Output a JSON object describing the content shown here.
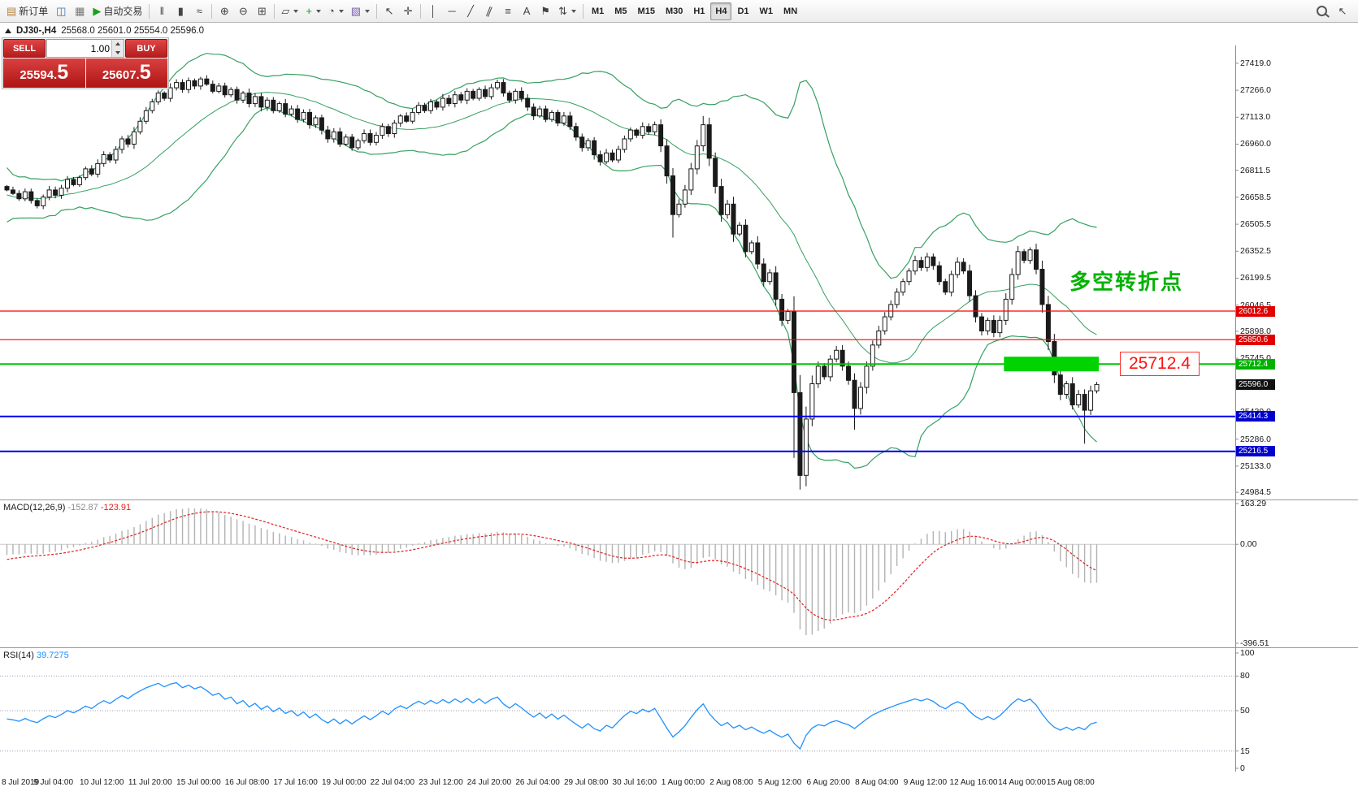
{
  "toolbar": {
    "groups": [
      {
        "items": [
          {
            "name": "new-order",
            "label": "新订单"
          },
          {
            "name": "chart-window"
          },
          {
            "name": "profiles"
          },
          {
            "name": "autotrading",
            "label": "自动交易"
          }
        ]
      },
      {
        "items": [
          {
            "name": "bar-chart"
          },
          {
            "name": "candlestick-chart"
          },
          {
            "name": "line-chart"
          }
        ]
      },
      {
        "items": [
          {
            "name": "zoom-in"
          },
          {
            "name": "zoom-out"
          },
          {
            "name": "tile-windows"
          }
        ]
      },
      {
        "items": [
          {
            "name": "new-chart",
            "caret": true
          },
          {
            "name": "indicators",
            "caret": true
          },
          {
            "name": "periods",
            "caret": true
          },
          {
            "name": "templates",
            "caret": true
          }
        ]
      },
      {
        "items": [
          {
            "name": "cursor"
          },
          {
            "name": "crosshair"
          }
        ]
      },
      {
        "items": [
          {
            "name": "vertical-line"
          },
          {
            "name": "horizontal-line"
          },
          {
            "name": "trend-line"
          },
          {
            "name": "channel"
          },
          {
            "name": "fibonacci"
          },
          {
            "name": "text"
          },
          {
            "name": "label"
          },
          {
            "name": "arrows",
            "caret": true
          }
        ]
      }
    ],
    "timeframes": [
      "M1",
      "M5",
      "M15",
      "M30",
      "H1",
      "H4",
      "D1",
      "W1",
      "MN"
    ],
    "active_timeframe": "H4",
    "right_items": [
      {
        "name": "search"
      },
      {
        "name": "pointer"
      }
    ]
  },
  "chart": {
    "symbol_period": "DJ30-,H4",
    "ohlc": "25568.0 25601.0 25554.0 25596.0"
  },
  "one_click": {
    "sell_label": "SELL",
    "buy_label": "BUY",
    "volume": "1.00",
    "sell_price": "25594.",
    "sell_price_big": "5",
    "buy_price": "25607.",
    "buy_price_big": "5"
  },
  "price_axis": {
    "labels": [
      "27419.0",
      "27266.0",
      "27113.0",
      "26960.0",
      "26811.5",
      "26658.5",
      "26505.5",
      "26352.5",
      "26199.5",
      "26046.5",
      "25898.0",
      "25745.0",
      "25592.0",
      "25439.0",
      "25286.0",
      "25133.0",
      "24984.5"
    ],
    "badges": [
      {
        "text": "26012.6",
        "color": "#e00000"
      },
      {
        "text": "25850.6",
        "color": "#e00000"
      },
      {
        "text": "25712.4",
        "color": "#00b300"
      },
      {
        "text": "25596.0",
        "color": "#111111"
      },
      {
        "text": "25414.3",
        "color": "#0000cc"
      },
      {
        "text": "25216.5",
        "color": "#0000cc"
      }
    ]
  },
  "hlines": [
    {
      "value": 26012.6,
      "color": "#ff0000",
      "width": 1.2
    },
    {
      "value": 25850.6,
      "color": "#ff0000",
      "width": 1.2
    },
    {
      "value": 25712.4,
      "color": "#00c400",
      "width": 2
    },
    {
      "value": 25414.3,
      "color": "#0000ee",
      "width": 2
    },
    {
      "value": 25216.5,
      "color": "#0000ee",
      "width": 2
    }
  ],
  "annotations": {
    "turning_point_text": "多空转折点",
    "price_label": "25712.4",
    "zone": {
      "from_index": 165,
      "to_index": 180,
      "price": 25712.4,
      "color": "#00d400"
    }
  },
  "macd": {
    "label": "MACD(12,26,9)",
    "main_value": "-152.87",
    "signal_value": "-123.91",
    "scale_max": "163.29",
    "scale_zero": "0.00",
    "scale_min": "-396.51"
  },
  "rsi": {
    "label": "RSI(14)",
    "value": "39.7275",
    "scale": [
      "100",
      "80",
      "50",
      "15",
      "0"
    ],
    "levels": [
      80,
      50,
      15
    ]
  },
  "time_axis": [
    "8 Jul 2019",
    "9 Jul 04:00",
    "10 Jul 12:00",
    "11 Jul 20:00",
    "15 Jul 00:00",
    "16 Jul 08:00",
    "17 Jul 16:00",
    "19 Jul 00:00",
    "22 Jul 04:00",
    "23 Jul 12:00",
    "24 Jul 20:00",
    "26 Jul 04:00",
    "29 Jul 08:00",
    "30 Jul 16:00",
    "1 Aug 00:00",
    "2 Aug 08:00",
    "5 Aug 12:00",
    "6 Aug 20:00",
    "8 Aug 04:00",
    "9 Aug 12:00",
    "12 Aug 16:00",
    "14 Aug 00:00",
    "15 Aug 08:00"
  ],
  "chart_data": {
    "type": "candlestick",
    "symbol": "DJ30-",
    "period": "H4",
    "price_view": {
      "max": 27520,
      "min": 24948
    },
    "indicators": {
      "bollinger": {
        "period": 20,
        "deviation": 2
      },
      "macd": [
        12,
        26,
        9
      ],
      "rsi": 14
    },
    "pre_closes": [
      26950,
      26870,
      26760,
      26680,
      26740,
      26620,
      26700,
      26560,
      26640,
      26520,
      26600,
      26660,
      26580,
      26680,
      26620,
      26720,
      26650,
      26740,
      26680,
      26720
    ],
    "closes": [
      26700,
      26680,
      26650,
      26690,
      26640,
      26610,
      26660,
      26700,
      26670,
      26710,
      26760,
      26730,
      26770,
      26820,
      26790,
      26850,
      26900,
      26870,
      26930,
      26990,
      26960,
      27030,
      27090,
      27150,
      27200,
      27250,
      27220,
      27280,
      27310,
      27270,
      27320,
      27290,
      27330,
      27300,
      27260,
      27290,
      27240,
      27270,
      27210,
      27250,
      27190,
      27230,
      27170,
      27210,
      27150,
      27190,
      27130,
      27160,
      27100,
      27140,
      27070,
      27110,
      27040,
      26990,
      27030,
      26960,
      27000,
      26940,
      26980,
      27020,
      26970,
      27010,
      27060,
      27020,
      27080,
      27120,
      27090,
      27140,
      27180,
      27150,
      27200,
      27170,
      27220,
      27190,
      27240,
      27210,
      27260,
      27220,
      27270,
      27230,
      27280,
      27310,
      27250,
      27210,
      27260,
      27220,
      27170,
      27120,
      27160,
      27100,
      27140,
      27080,
      27120,
      27060,
      27000,
      26940,
      26980,
      26900,
      26860,
      26910,
      26870,
      26930,
      26990,
      27040,
      27010,
      27060,
      27030,
      27070,
      26950,
      26780,
      26560,
      26620,
      26700,
      26820,
      26950,
      27070,
      26880,
      26720,
      26560,
      26620,
      26450,
      26500,
      26350,
      26400,
      26280,
      26180,
      26230,
      26080,
      25960,
      26010,
      25550,
      25080,
      25400,
      25600,
      25700,
      25640,
      25740,
      25790,
      25700,
      25620,
      25460,
      25580,
      25700,
      25820,
      25900,
      25980,
      26050,
      26120,
      26180,
      26240,
      26300,
      26260,
      26320,
      26270,
      26180,
      26120,
      26220,
      26290,
      26240,
      26100,
      25980,
      25900,
      25960,
      25890,
      25960,
      26080,
      26220,
      26350,
      26300,
      26360,
      26250,
      26050,
      25840,
      25650,
      25540,
      25600,
      25480,
      25540,
      25450,
      25560,
      25596
    ],
    "wick_overrides": {
      "110": {
        "low": 26430
      },
      "115": {
        "high": 27120
      },
      "130": {
        "low": 25180
      },
      "131": {
        "low": 25000
      },
      "140": {
        "low": 25340
      },
      "178": {
        "low": 25260
      }
    }
  }
}
